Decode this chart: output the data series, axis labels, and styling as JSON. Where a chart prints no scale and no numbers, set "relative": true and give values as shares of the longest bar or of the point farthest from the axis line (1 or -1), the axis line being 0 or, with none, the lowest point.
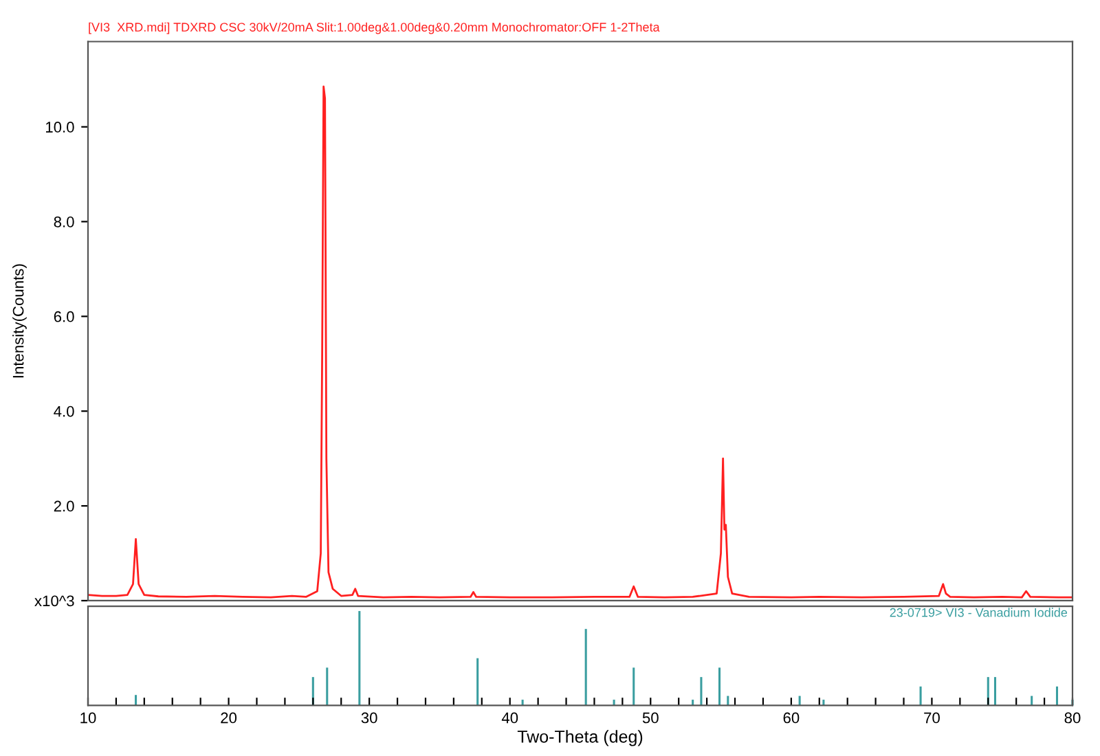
{
  "chart_data": [
    {
      "type": "line",
      "title": "[VI3  XRD.mdi] TDXRD CSC 30kV/20mA Slit:1.00deg&1.00deg&0.20mm Monochromator:OFF 1-2Theta",
      "ylabel": "Intensity(Counts)",
      "xlim": [
        10,
        80
      ],
      "ylim": [
        0,
        11.8
      ],
      "yticks": [
        {
          "value": 0,
          "label": "x10^3"
        },
        {
          "value": 2,
          "label": "2.0"
        },
        {
          "value": 4,
          "label": "4.0"
        },
        {
          "value": 6,
          "label": "6.0"
        },
        {
          "value": 8,
          "label": "8.0"
        },
        {
          "value": 10,
          "label": "10.0"
        }
      ],
      "tick_labels": "y",
      "grid": false,
      "legend": false,
      "marker": "none",
      "line_style": "solid",
      "series": [
        {
          "color": "#ff2020",
          "x": [
            10,
            11,
            12,
            12.8,
            13.2,
            13.4,
            13.6,
            14.0,
            15,
            17,
            19,
            21,
            23,
            24.5,
            25.5,
            26.3,
            26.55,
            26.65,
            26.75,
            26.85,
            26.95,
            27.1,
            27.4,
            28,
            28.8,
            29.0,
            29.2,
            31,
            33,
            35,
            37.2,
            37.4,
            37.6,
            40,
            43,
            46,
            48.5,
            48.8,
            49.1,
            51,
            53,
            54.7,
            55.0,
            55.15,
            55.25,
            55.35,
            55.5,
            55.8,
            57,
            60,
            62,
            65,
            68,
            70.5,
            70.8,
            71.0,
            71.3,
            73,
            75,
            76.4,
            76.7,
            77.0,
            79,
            80
          ],
          "values": [
            0.12,
            0.1,
            0.1,
            0.12,
            0.35,
            1.3,
            0.35,
            0.12,
            0.09,
            0.08,
            0.1,
            0.08,
            0.07,
            0.1,
            0.08,
            0.2,
            1.0,
            5.2,
            10.85,
            10.6,
            3.0,
            0.6,
            0.25,
            0.1,
            0.12,
            0.25,
            0.1,
            0.07,
            0.08,
            0.07,
            0.08,
            0.18,
            0.08,
            0.07,
            0.07,
            0.08,
            0.08,
            0.3,
            0.08,
            0.07,
            0.08,
            0.15,
            1.0,
            3.0,
            1.5,
            1.6,
            0.5,
            0.15,
            0.08,
            0.07,
            0.08,
            0.07,
            0.08,
            0.1,
            0.35,
            0.15,
            0.08,
            0.07,
            0.08,
            0.07,
            0.2,
            0.08,
            0.07,
            0.07
          ]
        }
      ]
    },
    {
      "type": "bar",
      "relative": true,
      "xlabel": "Two-Theta (deg)",
      "xlim": [
        10,
        80
      ],
      "xticks": [
        10,
        {
          "value": 12,
          "label": null
        },
        {
          "value": 14,
          "label": null
        },
        {
          "value": 16,
          "label": null
        },
        {
          "value": 18,
          "label": null
        },
        20,
        {
          "value": 22,
          "label": null
        },
        {
          "value": 24,
          "label": null
        },
        {
          "value": 26,
          "label": null
        },
        {
          "value": 28,
          "label": null
        },
        30,
        {
          "value": 32,
          "label": null
        },
        {
          "value": 34,
          "label": null
        },
        {
          "value": 36,
          "label": null
        },
        {
          "value": 38,
          "label": null
        },
        40,
        {
          "value": 42,
          "label": null
        },
        {
          "value": 44,
          "label": null
        },
        {
          "value": 46,
          "label": null
        },
        {
          "value": 48,
          "label": null
        },
        50,
        {
          "value": 52,
          "label": null
        },
        {
          "value": 54,
          "label": null
        },
        {
          "value": 56,
          "label": null
        },
        {
          "value": 58,
          "label": null
        },
        60,
        {
          "value": 62,
          "label": null
        },
        {
          "value": 64,
          "label": null
        },
        {
          "value": 66,
          "label": null
        },
        {
          "value": 68,
          "label": null
        },
        70,
        {
          "value": 72,
          "label": null
        },
        {
          "value": 74,
          "label": null
        },
        {
          "value": 76,
          "label": null
        },
        {
          "value": 78,
          "label": null
        },
        80
      ],
      "tick_labels": "x",
      "grid": false,
      "legend": "top right",
      "series": [
        {
          "name": "23-0719> VI3 - Vanadium Iodide",
          "color": "#3a9ea0",
          "x": [
            13.4,
            26.0,
            27.0,
            29.3,
            37.7,
            40.9,
            45.4,
            47.4,
            48.8,
            53.0,
            53.6,
            54.9,
            55.5,
            60.6,
            62.3,
            69.2,
            74.0,
            74.5,
            77.1,
            78.9,
            80.0
          ],
          "values": [
            0.11,
            0.3,
            0.4,
            1.0,
            0.5,
            0.06,
            0.81,
            0.06,
            0.4,
            0.06,
            0.3,
            0.4,
            0.1,
            0.1,
            0.06,
            0.2,
            0.3,
            0.3,
            0.1,
            0.2,
            0.06
          ]
        }
      ]
    }
  ]
}
